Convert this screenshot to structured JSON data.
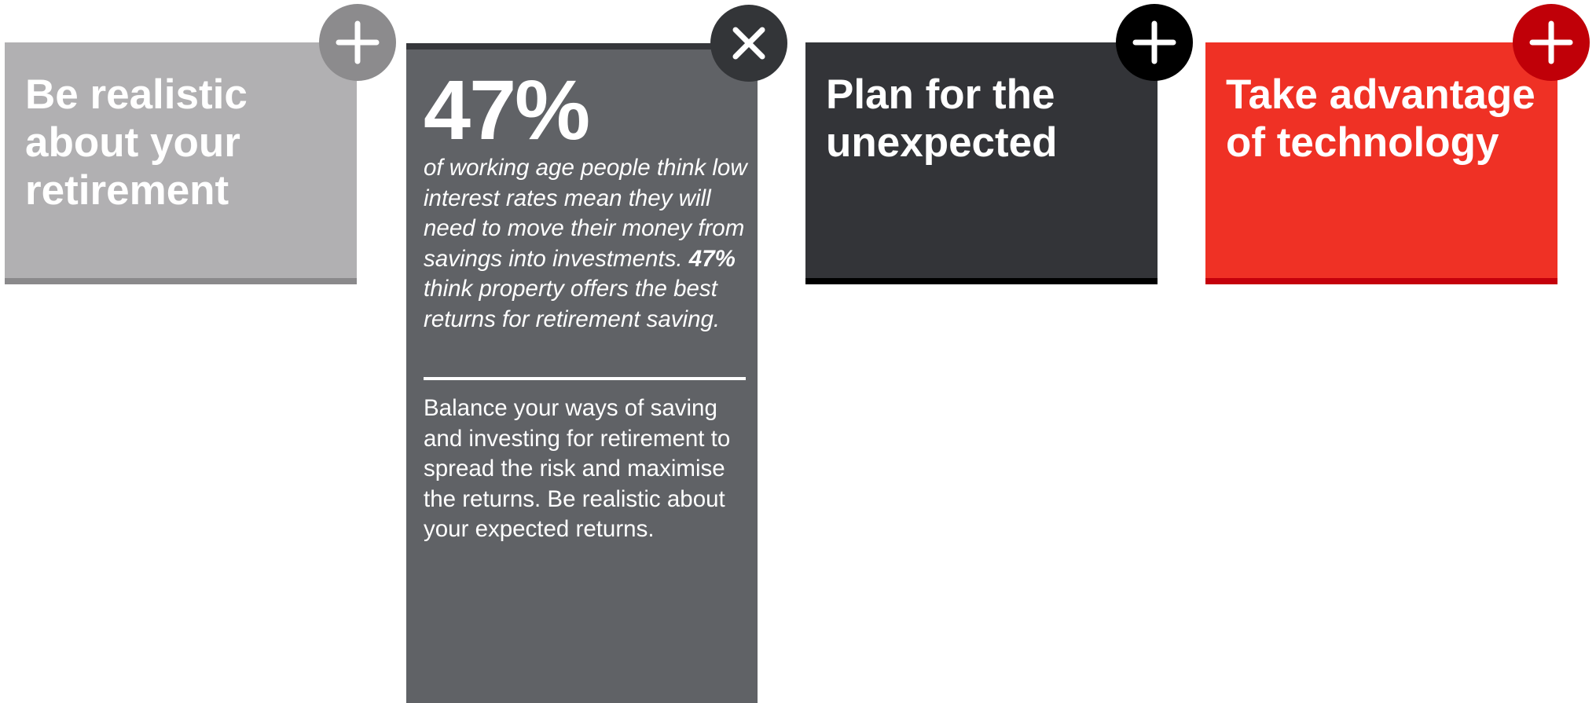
{
  "cards": [
    {
      "title": "Be realistic about your retirement"
    },
    {
      "stat": "47%",
      "description": [
        "of working age people think low interest rates mean they will need to move their money from savings into investments.",
        "47%",
        "think property offers the best returns for retirement saving."
      ],
      "body": "Balance your ways of saving and investing for retirement to spread the risk and maximise the returns. Be realistic about your expected returns."
    },
    {
      "title": "Plan for the unexpected"
    },
    {
      "title": "Take advantage of technology"
    }
  ]
}
